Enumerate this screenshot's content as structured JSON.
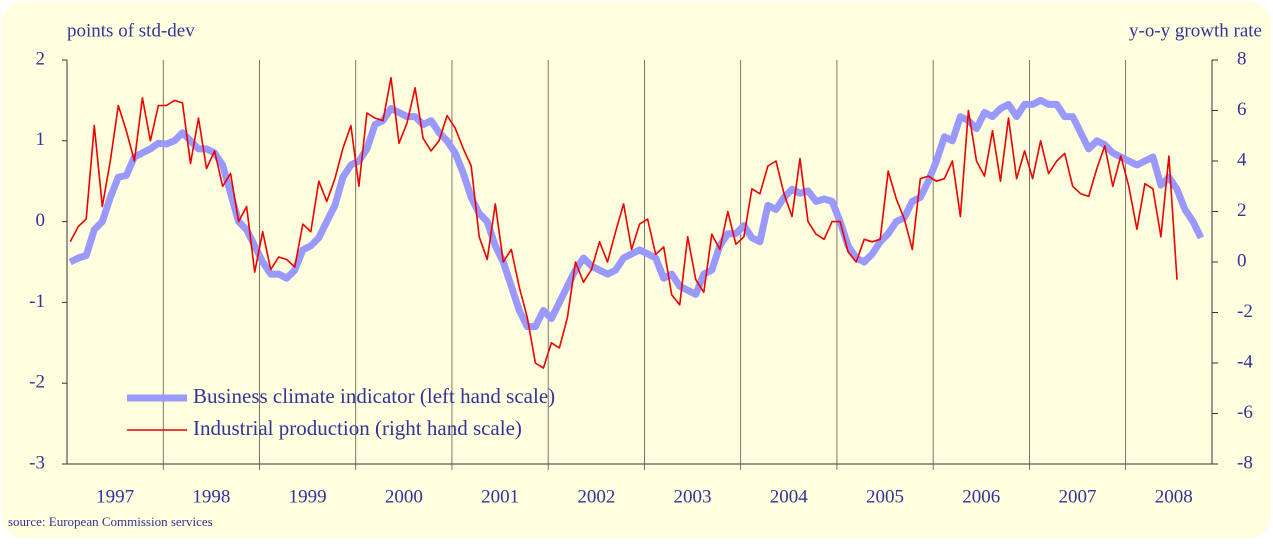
{
  "chart_data": {
    "type": "line",
    "left_axis_label": "points of std-dev",
    "right_axis_label": "y-o-y growth rate",
    "source": "source: European Commission services",
    "categories": [
      "1997",
      null,
      null,
      null,
      null,
      null,
      null,
      null,
      null,
      null,
      null,
      null,
      "1998",
      null,
      null,
      null,
      null,
      null,
      null,
      null,
      null,
      null,
      null,
      null,
      "1999",
      null,
      null,
      null,
      null,
      null,
      null,
      null,
      null,
      null,
      null,
      null,
      "2000",
      null,
      null,
      null,
      null,
      null,
      null,
      null,
      null,
      null,
      null,
      null,
      "2001",
      null,
      null,
      null,
      null,
      null,
      null,
      null,
      null,
      null,
      null,
      null,
      "2002",
      null,
      null,
      null,
      null,
      null,
      null,
      null,
      null,
      null,
      null,
      null,
      "2003",
      null,
      null,
      null,
      null,
      null,
      null,
      null,
      null,
      null,
      null,
      null,
      "2004",
      null,
      null,
      null,
      null,
      null,
      null,
      null,
      null,
      null,
      null,
      null,
      "2005",
      null,
      null,
      null,
      null,
      null,
      null,
      null,
      null,
      null,
      null,
      null,
      "2006",
      null,
      null,
      null,
      null,
      null,
      null,
      null,
      null,
      null,
      null,
      null,
      "2007",
      null,
      null,
      null,
      null,
      null,
      null,
      null,
      null,
      null,
      null,
      null,
      "2008",
      null,
      null,
      null,
      null,
      null,
      null,
      null,
      null,
      null
    ],
    "series": [
      {
        "name": "Business climate indicator (left hand scale)",
        "color": "#9999ff",
        "axis": "y",
        "values": [
          -0.5,
          -0.45,
          -0.42,
          -0.1,
          0.0,
          0.3,
          0.55,
          0.57,
          0.8,
          0.85,
          0.9,
          0.97,
          0.96,
          1.0,
          1.1,
          1.0,
          0.9,
          0.9,
          0.85,
          0.7,
          0.35,
          0.0,
          -0.1,
          -0.3,
          -0.5,
          -0.65,
          -0.65,
          -0.7,
          -0.6,
          -0.35,
          -0.3,
          -0.2,
          0.0,
          0.2,
          0.55,
          0.7,
          0.75,
          0.9,
          1.2,
          1.25,
          1.4,
          1.35,
          1.3,
          1.3,
          1.2,
          1.25,
          1.1,
          1.0,
          0.85,
          0.6,
          0.3,
          0.1,
          0.0,
          -0.3,
          -0.5,
          -0.8,
          -1.1,
          -1.3,
          -1.3,
          -1.1,
          -1.2,
          -1.0,
          -0.8,
          -0.6,
          -0.45,
          -0.55,
          -0.6,
          -0.65,
          -0.6,
          -0.45,
          -0.4,
          -0.35,
          -0.4,
          -0.45,
          -0.7,
          -0.65,
          -0.8,
          -0.85,
          -0.9,
          -0.65,
          -0.6,
          -0.3,
          -0.15,
          -0.15,
          -0.05,
          -0.2,
          -0.25,
          0.2,
          0.15,
          0.3,
          0.4,
          0.35,
          0.38,
          0.25,
          0.28,
          0.25,
          0.0,
          -0.3,
          -0.45,
          -0.5,
          -0.4,
          -0.25,
          -0.15,
          0.0,
          0.05,
          0.25,
          0.3,
          0.5,
          0.75,
          1.05,
          1.0,
          1.3,
          1.25,
          1.15,
          1.35,
          1.3,
          1.4,
          1.45,
          1.3,
          1.45,
          1.45,
          1.5,
          1.45,
          1.45,
          1.3,
          1.3,
          1.1,
          0.9,
          1.0,
          0.95,
          0.85,
          0.8,
          0.75,
          0.7,
          0.75,
          0.8,
          0.45,
          0.55,
          0.4,
          0.15,
          0.0,
          -0.2
        ]
      },
      {
        "name": "Industrial production (right hand scale)",
        "color": "#ee0000",
        "axis": "y2",
        "values": [
          0.8,
          1.4,
          1.7,
          5.4,
          2.2,
          4.0,
          6.2,
          5.2,
          4.0,
          6.5,
          4.8,
          6.2,
          6.2,
          6.4,
          6.3,
          3.9,
          5.7,
          3.7,
          4.4,
          3.0,
          3.5,
          1.6,
          2.2,
          -0.4,
          1.2,
          -0.3,
          0.2,
          0.1,
          -0.2,
          1.5,
          1.2,
          3.2,
          2.4,
          3.3,
          4.5,
          5.4,
          3.0,
          5.9,
          5.7,
          5.6,
          7.3,
          4.7,
          5.5,
          6.9,
          4.9,
          4.4,
          4.8,
          5.8,
          5.3,
          4.5,
          3.8,
          1.0,
          0.1,
          2.3,
          0.0,
          0.5,
          -1.0,
          -2.2,
          -4.0,
          -4.2,
          -3.2,
          -3.4,
          -2.2,
          0.0,
          -0.8,
          -0.3,
          0.8,
          0.0,
          1.2,
          2.3,
          0.5,
          1.5,
          1.7,
          0.3,
          0.6,
          -1.3,
          -1.7,
          1.0,
          -0.7,
          -1.2,
          1.1,
          0.5,
          2.0,
          0.7,
          1.0,
          2.9,
          2.7,
          3.8,
          4.0,
          2.7,
          1.8,
          4.1,
          1.6,
          1.1,
          0.9,
          1.6,
          1.6,
          0.4,
          0.0,
          0.9,
          0.8,
          0.9,
          3.6,
          2.5,
          1.7,
          0.5,
          3.3,
          3.4,
          3.2,
          3.3,
          4.0,
          1.8,
          6.0,
          4.0,
          3.4,
          5.2,
          3.2,
          5.7,
          3.3,
          4.4,
          3.3,
          4.8,
          3.5,
          4.0,
          4.3,
          3.0,
          2.7,
          2.6,
          3.7,
          4.6,
          3.0,
          4.2,
          3.0,
          1.3,
          3.1,
          2.9,
          1.0,
          4.2,
          -0.7,
          null,
          null,
          null
        ]
      }
    ],
    "ylim": [
      -3,
      2
    ],
    "yticks": [
      -3,
      -2,
      -1,
      0,
      1,
      2
    ],
    "y2lim": [
      -8,
      8
    ],
    "y2ticks": [
      -8,
      -6,
      -4,
      -2,
      0,
      2,
      4,
      6,
      8
    ],
    "grid": false,
    "legend": "lower left"
  }
}
